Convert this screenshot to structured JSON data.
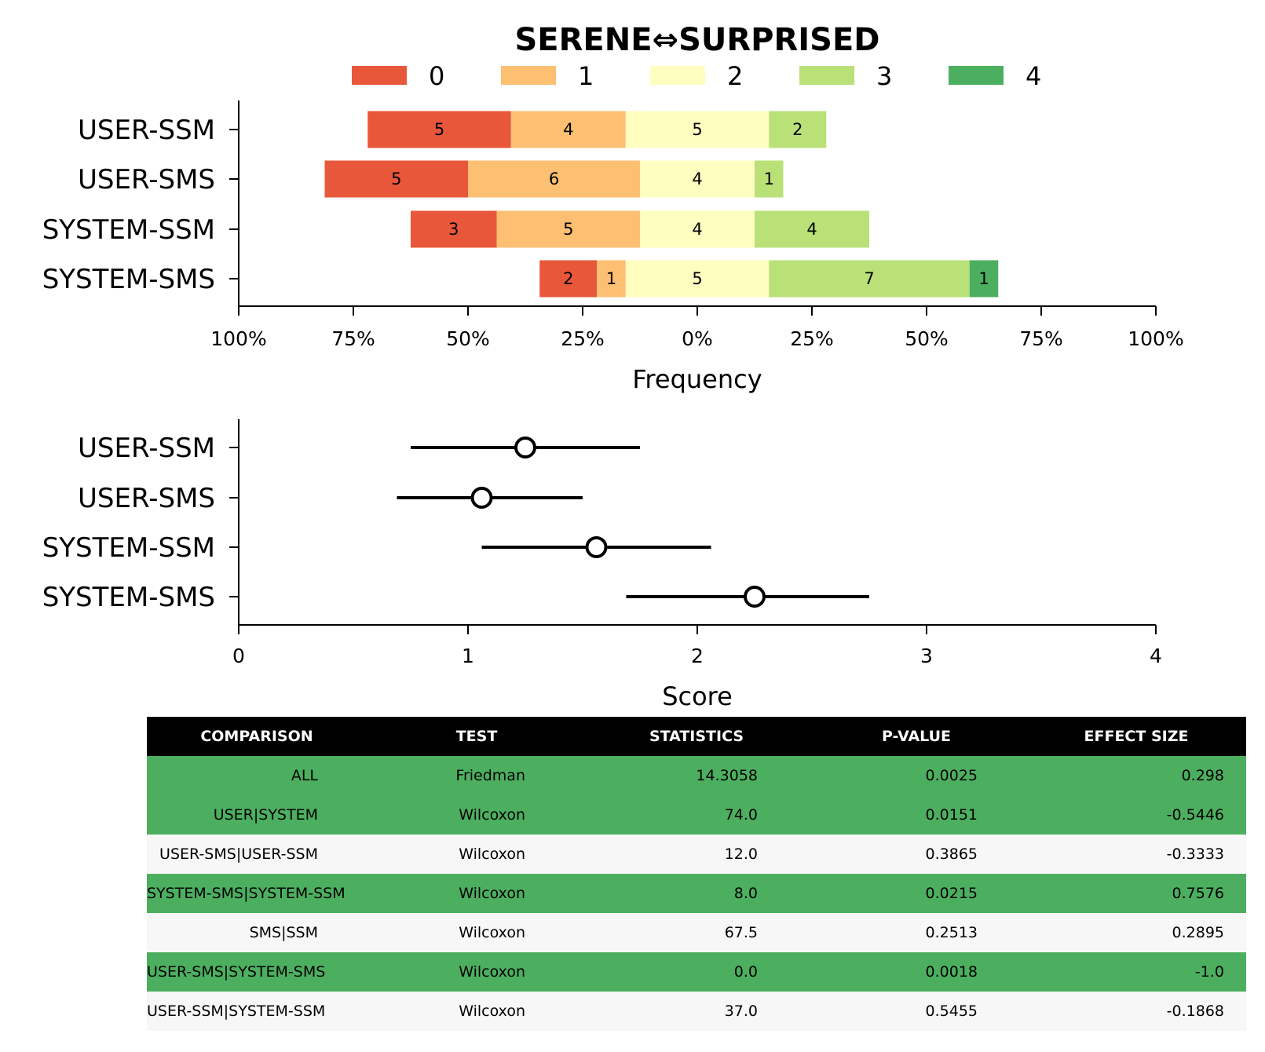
{
  "chart_data": [
    {
      "type": "bar",
      "subtype": "diverging-stacked-likert",
      "title": "SERENE⇔SURPRISED",
      "xlabel": "Frequency",
      "ylabel": "",
      "categories": [
        "USER-SSM",
        "USER-SMS",
        "SYSTEM-SSM",
        "SYSTEM-SMS"
      ],
      "xticks": [
        "100%",
        "75%",
        "50%",
        "25%",
        "0%",
        "25%",
        "50%",
        "75%",
        "100%"
      ],
      "xlim": [
        -100,
        100
      ],
      "legend_position": "top",
      "grid": false,
      "series": [
        {
          "name": "0",
          "color": "#e8573a",
          "values": [
            5,
            5,
            3,
            2
          ]
        },
        {
          "name": "1",
          "color": "#fdbf71",
          "values": [
            4,
            6,
            5,
            1
          ]
        },
        {
          "name": "2",
          "color": "#fefec0",
          "values": [
            5,
            4,
            4,
            5
          ]
        },
        {
          "name": "3",
          "color": "#b9e177",
          "values": [
            2,
            1,
            4,
            7
          ]
        },
        {
          "name": "4",
          "color": "#4caf5f",
          "values": [
            0,
            0,
            0,
            1
          ]
        }
      ]
    },
    {
      "type": "scatter",
      "subtype": "point-with-interval",
      "xlabel": "Score",
      "ylabel": "",
      "categories": [
        "USER-SSM",
        "USER-SMS",
        "SYSTEM-SSM",
        "SYSTEM-SMS"
      ],
      "xlim": [
        0,
        4
      ],
      "xticks": [
        "0",
        "1",
        "2",
        "3",
        "4"
      ],
      "grid": false,
      "points": [
        {
          "label": "USER-SSM",
          "mean": 1.25,
          "low": 0.75,
          "high": 1.75
        },
        {
          "label": "USER-SMS",
          "mean": 1.06,
          "low": 0.69,
          "high": 1.5
        },
        {
          "label": "SYSTEM-SSM",
          "mean": 1.56,
          "low": 1.06,
          "high": 2.06
        },
        {
          "label": "SYSTEM-SMS",
          "mean": 2.25,
          "low": 1.69,
          "high": 2.75
        }
      ]
    },
    {
      "type": "table",
      "columns": [
        "COMPARISON",
        "TEST",
        "STATISTICS",
        "P-VALUE",
        "EFFECT SIZE"
      ],
      "header_color": "#000000",
      "significant_color": "#4caf5f",
      "default_color": "#f7f7f7",
      "rows": [
        {
          "cells": [
            "ALL",
            "Friedman",
            "14.3058",
            "0.0025",
            "0.298"
          ],
          "significant": true
        },
        {
          "cells": [
            "USER|SYSTEM",
            "Wilcoxon",
            "74.0",
            "0.0151",
            "-0.5446"
          ],
          "significant": true
        },
        {
          "cells": [
            "USER-SMS|USER-SSM",
            "Wilcoxon",
            "12.0",
            "0.3865",
            "-0.3333"
          ],
          "significant": false
        },
        {
          "cells": [
            "SYSTEM-SMS|SYSTEM-SSM",
            "Wilcoxon",
            "8.0",
            "0.0215",
            "0.7576"
          ],
          "significant": true
        },
        {
          "cells": [
            "SMS|SSM",
            "Wilcoxon",
            "67.5",
            "0.2513",
            "0.2895"
          ],
          "significant": false
        },
        {
          "cells": [
            "USER-SMS|SYSTEM-SMS",
            "Wilcoxon",
            "0.0",
            "0.0018",
            "-1.0"
          ],
          "significant": true
        },
        {
          "cells": [
            "USER-SSM|SYSTEM-SSM",
            "Wilcoxon",
            "37.0",
            "0.5455",
            "-0.1868"
          ],
          "significant": false
        }
      ]
    }
  ]
}
